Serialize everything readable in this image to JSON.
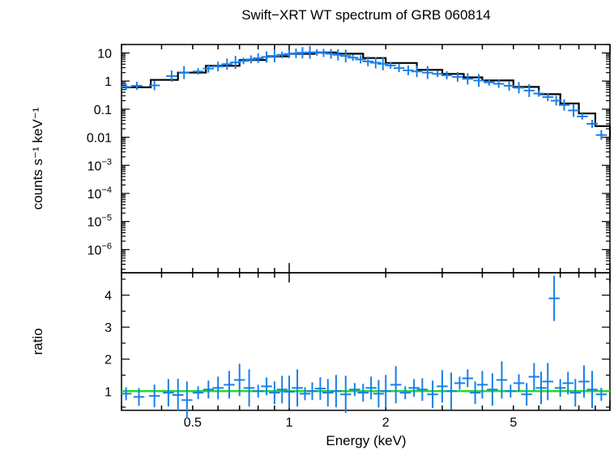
{
  "chart_data": [
    {
      "panel": "spectrum",
      "type": "scatter",
      "title": "Swift−XRT WT spectrum of GRB 060814",
      "ylabel": "counts s⁻¹ keV⁻¹",
      "xscale": "log",
      "yscale": "log",
      "xlim": [
        0.3,
        10
      ],
      "ylim": [
        1.5e-07,
        20
      ],
      "ytick_labels": [
        {
          "v": 10,
          "t": "10"
        },
        {
          "v": 1,
          "t": "1"
        },
        {
          "v": 0.1,
          "t": "0.1"
        },
        {
          "v": 0.01,
          "t": "0.01"
        },
        {
          "v": 0.001,
          "base": "10",
          "exp": "−3"
        },
        {
          "v": 0.0001,
          "base": "10",
          "exp": "−4"
        },
        {
          "v": 1e-05,
          "base": "10",
          "exp": "−5"
        },
        {
          "v": 1e-06,
          "base": "10",
          "exp": "−6"
        }
      ],
      "series": [
        {
          "role": "data",
          "color": "#1a7fe8",
          "points": [
            {
              "x": 0.31,
              "y": 0.62
            },
            {
              "x": 0.335,
              "y": 0.68
            },
            {
              "x": 0.38,
              "y": 0.7
            },
            {
              "x": 0.43,
              "y": 1.5
            },
            {
              "x": 0.47,
              "y": 2.0
            },
            {
              "x": 0.52,
              "y": 2.2
            },
            {
              "x": 0.56,
              "y": 2.8
            },
            {
              "x": 0.6,
              "y": 3.3
            },
            {
              "x": 0.64,
              "y": 4.0
            },
            {
              "x": 0.68,
              "y": 4.6
            },
            {
              "x": 0.72,
              "y": 5.2
            },
            {
              "x": 0.76,
              "y": 5.9
            },
            {
              "x": 0.8,
              "y": 6.5
            },
            {
              "x": 0.85,
              "y": 7.2
            },
            {
              "x": 0.9,
              "y": 7.9
            },
            {
              "x": 0.95,
              "y": 8.6
            },
            {
              "x": 1.0,
              "y": 9.2
            },
            {
              "x": 1.05,
              "y": 9.7
            },
            {
              "x": 1.1,
              "y": 10.2
            },
            {
              "x": 1.16,
              "y": 10.5
            },
            {
              "x": 1.22,
              "y": 10.4
            },
            {
              "x": 1.28,
              "y": 10.0
            },
            {
              "x": 1.35,
              "y": 9.3
            },
            {
              "x": 1.42,
              "y": 8.6
            },
            {
              "x": 1.5,
              "y": 7.8
            },
            {
              "x": 1.58,
              "y": 6.8
            },
            {
              "x": 1.67,
              "y": 5.9
            },
            {
              "x": 1.76,
              "y": 5.0
            },
            {
              "x": 1.86,
              "y": 4.5
            },
            {
              "x": 1.96,
              "y": 4.1
            },
            {
              "x": 2.07,
              "y": 3.6
            },
            {
              "x": 2.2,
              "y": 2.9
            },
            {
              "x": 2.35,
              "y": 2.4
            },
            {
              "x": 2.5,
              "y": 2.2
            },
            {
              "x": 2.7,
              "y": 2.0
            },
            {
              "x": 2.9,
              "y": 1.8
            },
            {
              "x": 3.1,
              "y": 1.6
            },
            {
              "x": 3.35,
              "y": 1.4
            },
            {
              "x": 3.6,
              "y": 1.2
            },
            {
              "x": 3.9,
              "y": 1.05
            },
            {
              "x": 4.2,
              "y": 0.9
            },
            {
              "x": 4.5,
              "y": 0.8
            },
            {
              "x": 4.85,
              "y": 0.68
            },
            {
              "x": 5.2,
              "y": 0.58
            },
            {
              "x": 5.6,
              "y": 0.46
            },
            {
              "x": 6.0,
              "y": 0.36
            },
            {
              "x": 6.4,
              "y": 0.27
            },
            {
              "x": 6.8,
              "y": 0.2
            },
            {
              "x": 7.2,
              "y": 0.14
            },
            {
              "x": 7.7,
              "y": 0.09
            },
            {
              "x": 8.2,
              "y": 0.055
            },
            {
              "x": 8.8,
              "y": 0.03
            },
            {
              "x": 9.4,
              "y": 0.012
            }
          ]
        },
        {
          "role": "model",
          "color": "#000000",
          "points": [
            {
              "x": 0.3,
              "y": 0.6
            },
            {
              "x": 0.37,
              "y": 1.1
            },
            {
              "x": 0.45,
              "y": 2.0
            },
            {
              "x": 0.55,
              "y": 3.5
            },
            {
              "x": 0.7,
              "y": 5.6
            },
            {
              "x": 0.85,
              "y": 7.6
            },
            {
              "x": 1.0,
              "y": 9.3
            },
            {
              "x": 1.2,
              "y": 10.4
            },
            {
              "x": 1.4,
              "y": 9.4
            },
            {
              "x": 1.7,
              "y": 6.6
            },
            {
              "x": 2.0,
              "y": 4.4
            },
            {
              "x": 2.5,
              "y": 2.5
            },
            {
              "x": 3.0,
              "y": 1.8
            },
            {
              "x": 3.5,
              "y": 1.35
            },
            {
              "x": 4.0,
              "y": 1.05
            },
            {
              "x": 5.0,
              "y": 0.62
            },
            {
              "x": 6.0,
              "y": 0.34
            },
            {
              "x": 7.0,
              "y": 0.16
            },
            {
              "x": 8.0,
              "y": 0.07
            },
            {
              "x": 9.0,
              "y": 0.025
            },
            {
              "x": 10.0,
              "y": 0.008
            }
          ]
        }
      ]
    },
    {
      "panel": "ratio",
      "type": "scatter",
      "xlabel": "Energy (keV)",
      "ylabel": "ratio",
      "xscale": "log",
      "xlim": [
        0.3,
        10
      ],
      "ylim": [
        0.4,
        4.7
      ],
      "ytick_labels": [
        {
          "v": 1,
          "t": "1"
        },
        {
          "v": 2,
          "t": "2"
        },
        {
          "v": 3,
          "t": "3"
        },
        {
          "v": 4,
          "t": "4"
        }
      ],
      "xtick_labels": [
        {
          "v": 0.5,
          "t": "0.5"
        },
        {
          "v": 1,
          "t": "1"
        },
        {
          "v": 2,
          "t": "2"
        },
        {
          "v": 5,
          "t": "5"
        }
      ],
      "reference_line": {
        "y": 1,
        "color": "#22dd22"
      },
      "series": [
        {
          "role": "data",
          "color": "#1a7fe8",
          "points": [
            {
              "x": 0.31,
              "y": 0.92
            },
            {
              "x": 0.34,
              "y": 0.82
            },
            {
              "x": 0.38,
              "y": 0.85
            },
            {
              "x": 0.42,
              "y": 0.95
            },
            {
              "x": 0.45,
              "y": 0.88
            },
            {
              "x": 0.48,
              "y": 0.72
            },
            {
              "x": 0.52,
              "y": 0.95
            },
            {
              "x": 0.56,
              "y": 1.05
            },
            {
              "x": 0.6,
              "y": 1.1
            },
            {
              "x": 0.65,
              "y": 1.2
            },
            {
              "x": 0.7,
              "y": 1.35
            },
            {
              "x": 0.75,
              "y": 1.1
            },
            {
              "x": 0.8,
              "y": 1.0
            },
            {
              "x": 0.85,
              "y": 1.15
            },
            {
              "x": 0.9,
              "y": 0.95
            },
            {
              "x": 0.95,
              "y": 1.05
            },
            {
              "x": 1.0,
              "y": 0.98
            },
            {
              "x": 1.06,
              "y": 1.1
            },
            {
              "x": 1.12,
              "y": 0.92
            },
            {
              "x": 1.18,
              "y": 1.0
            },
            {
              "x": 1.25,
              "y": 1.08
            },
            {
              "x": 1.32,
              "y": 0.95
            },
            {
              "x": 1.4,
              "y": 1.0
            },
            {
              "x": 1.5,
              "y": 0.9
            },
            {
              "x": 1.6,
              "y": 1.05
            },
            {
              "x": 1.7,
              "y": 0.95
            },
            {
              "x": 1.8,
              "y": 1.1
            },
            {
              "x": 1.9,
              "y": 0.92
            },
            {
              "x": 2.0,
              "y": 1.0
            },
            {
              "x": 2.15,
              "y": 1.2
            },
            {
              "x": 2.3,
              "y": 0.95
            },
            {
              "x": 2.45,
              "y": 1.1
            },
            {
              "x": 2.6,
              "y": 1.05
            },
            {
              "x": 2.8,
              "y": 0.9
            },
            {
              "x": 3.0,
              "y": 1.15
            },
            {
              "x": 3.2,
              "y": 1.0
            },
            {
              "x": 3.4,
              "y": 1.25
            },
            {
              "x": 3.6,
              "y": 1.4
            },
            {
              "x": 3.8,
              "y": 0.95
            },
            {
              "x": 4.0,
              "y": 1.2
            },
            {
              "x": 4.3,
              "y": 1.05
            },
            {
              "x": 4.6,
              "y": 1.35
            },
            {
              "x": 4.9,
              "y": 1.0
            },
            {
              "x": 5.2,
              "y": 1.25
            },
            {
              "x": 5.5,
              "y": 0.9
            },
            {
              "x": 5.8,
              "y": 1.45
            },
            {
              "x": 6.1,
              "y": 1.1
            },
            {
              "x": 6.4,
              "y": 1.3
            },
            {
              "x": 6.7,
              "y": 3.9
            },
            {
              "x": 7.0,
              "y": 1.1
            },
            {
              "x": 7.4,
              "y": 1.25
            },
            {
              "x": 7.8,
              "y": 0.95
            },
            {
              "x": 8.3,
              "y": 1.3
            },
            {
              "x": 8.8,
              "y": 1.05
            },
            {
              "x": 9.4,
              "y": 0.9
            }
          ]
        }
      ]
    }
  ]
}
